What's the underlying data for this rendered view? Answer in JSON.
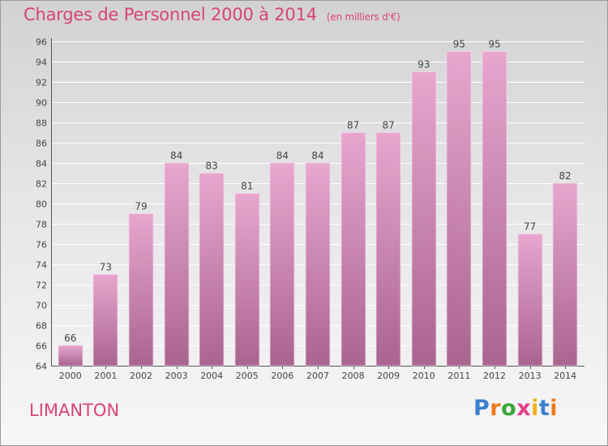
{
  "header": {
    "title": "Charges de Personnel 2000 à 2014",
    "subtitle": "(en milliers d'€)"
  },
  "footer": {
    "commune": "LIMANTON",
    "logo_text": "Proxiti"
  },
  "colors": {
    "title": "#d9437a",
    "bar_top": "#e8a6cf",
    "bar_bottom": "#a9658f",
    "bar_edge": "#f6d3ea",
    "grid": "#ffffff",
    "logo_letters": [
      "#3a7fd0",
      "#f07a1a",
      "#3aa63a",
      "#e83e8c",
      "#f0b21a",
      "#3a7fd0",
      "#f07a1a"
    ]
  },
  "chart_data": {
    "type": "bar",
    "categories": [
      "2000",
      "2001",
      "2002",
      "2003",
      "2004",
      "2005",
      "2006",
      "2007",
      "2008",
      "2009",
      "2010",
      "2011",
      "2012",
      "2013",
      "2014"
    ],
    "values": [
      66,
      73,
      79,
      84,
      83,
      81,
      84,
      84,
      87,
      87,
      93,
      95,
      95,
      77,
      82
    ],
    "title": "Charges de Personnel 2000 à 2014",
    "subtitle": "(en milliers d'€)",
    "ylim": [
      64,
      96
    ],
    "yticks": [
      64,
      66,
      68,
      70,
      72,
      74,
      76,
      78,
      80,
      82,
      84,
      86,
      88,
      90,
      92,
      94,
      96
    ],
    "grid": true,
    "data_labels": true
  }
}
